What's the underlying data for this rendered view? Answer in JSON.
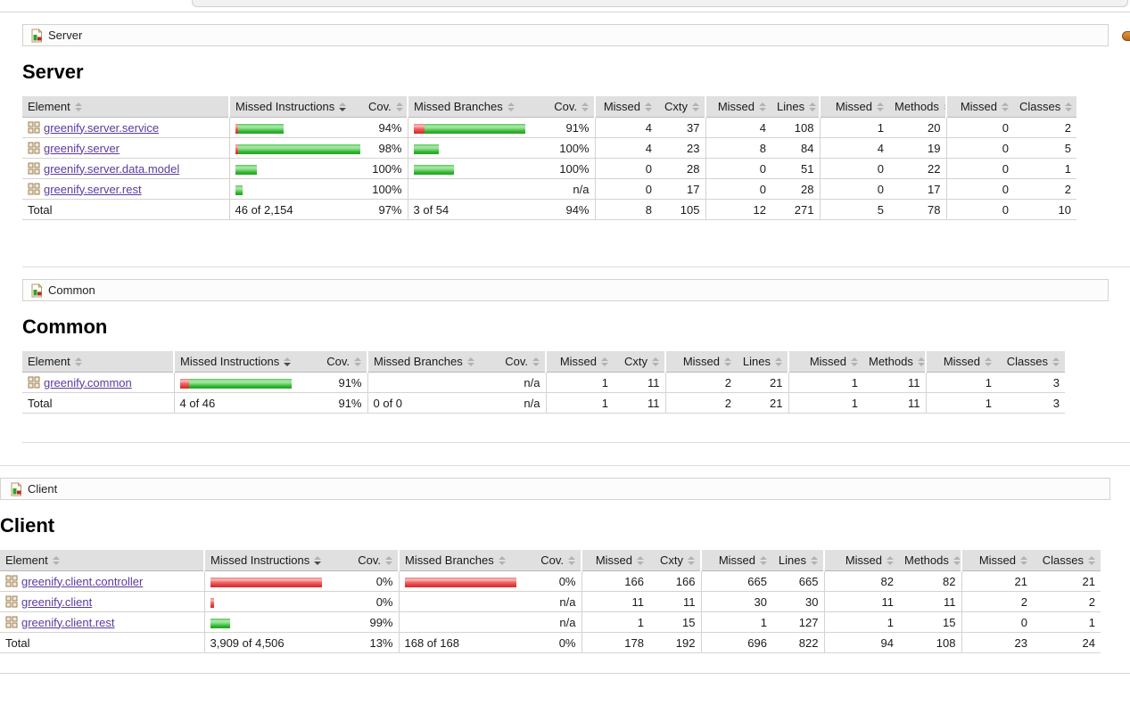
{
  "colors": {
    "link": "#5a3a9e",
    "bar_green": "#2db22d",
    "bar_red": "#e23b3b",
    "header_bg": "#e0e0e0"
  },
  "sections": [
    {
      "breadcrumb": "Server",
      "heading": "Server",
      "sorted_column": "Missed Instructions",
      "columns": [
        "Element",
        "Missed Instructions",
        "Cov.",
        "Missed Branches",
        "Cov.",
        "Missed",
        "Cxty",
        "Missed",
        "Lines",
        "Missed",
        "Methods",
        "Missed",
        "Classes"
      ],
      "rows": [
        {
          "label": "greenify.server.service",
          "instr_bar": {
            "red": 3,
            "green": 51
          },
          "instr_cov": "94%",
          "branch_bar": {
            "red": 12,
            "green": 113
          },
          "branch_cov": "91%",
          "cells": [
            "4",
            "37",
            "4",
            "108",
            "1",
            "20",
            "0",
            "2"
          ]
        },
        {
          "label": "greenify.server",
          "instr_bar": {
            "red": 3,
            "green": 137
          },
          "instr_cov": "98%",
          "branch_bar": {
            "red": 0,
            "green": 28
          },
          "branch_cov": "100%",
          "cells": [
            "4",
            "23",
            "8",
            "84",
            "4",
            "19",
            "0",
            "5"
          ]
        },
        {
          "label": "greenify.server.data.model",
          "instr_bar": {
            "red": 0,
            "green": 24
          },
          "instr_cov": "100%",
          "branch_bar": {
            "red": 0,
            "green": 45
          },
          "branch_cov": "100%",
          "cells": [
            "0",
            "28",
            "0",
            "51",
            "0",
            "22",
            "0",
            "1"
          ]
        },
        {
          "label": "greenify.server.rest",
          "instr_bar": {
            "red": 0,
            "green": 8
          },
          "instr_cov": "100%",
          "branch_bar": {
            "red": 0,
            "green": 0
          },
          "branch_cov": "n/a",
          "cells": [
            "0",
            "17",
            "0",
            "28",
            "0",
            "17",
            "0",
            "2"
          ]
        }
      ],
      "total": {
        "label": "Total",
        "instr_text": "46 of 2,154",
        "instr_cov": "97%",
        "branch_text": "3 of 54",
        "branch_cov": "94%",
        "cells": [
          "8",
          "105",
          "12",
          "271",
          "5",
          "78",
          "0",
          "10"
        ]
      }
    },
    {
      "breadcrumb": "Common",
      "heading": "Common",
      "sorted_column": "Missed Instructions",
      "columns": [
        "Element",
        "Missed Instructions",
        "Cov.",
        "Missed Branches",
        "Cov.",
        "Missed",
        "Cxty",
        "Missed",
        "Lines",
        "Missed",
        "Methods",
        "Missed",
        "Classes"
      ],
      "rows": [
        {
          "label": "greenify.common",
          "instr_bar": {
            "red": 10,
            "green": 115
          },
          "instr_cov": "91%",
          "branch_bar": {
            "red": 0,
            "green": 0
          },
          "branch_cov": "n/a",
          "cells": [
            "1",
            "11",
            "2",
            "21",
            "1",
            "11",
            "1",
            "3"
          ]
        }
      ],
      "total": {
        "label": "Total",
        "instr_text": "4 of 46",
        "instr_cov": "91%",
        "branch_text": "0 of 0",
        "branch_cov": "n/a",
        "cells": [
          "1",
          "11",
          "2",
          "21",
          "1",
          "11",
          "1",
          "3"
        ]
      }
    },
    {
      "breadcrumb": "Client",
      "heading": "Client",
      "sorted_column": "Missed Instructions",
      "columns": [
        "Element",
        "Missed Instructions",
        "Cov.",
        "Missed Branches",
        "Cov.",
        "Missed",
        "Cxty",
        "Missed",
        "Lines",
        "Missed",
        "Methods",
        "Missed",
        "Classes"
      ],
      "rows": [
        {
          "label": "greenify.client.controller",
          "instr_bar": {
            "red": 125,
            "green": 0
          },
          "instr_cov": "0%",
          "branch_bar": {
            "red": 125,
            "green": 0
          },
          "branch_cov": "0%",
          "cells": [
            "166",
            "166",
            "665",
            "665",
            "82",
            "82",
            "21",
            "21"
          ]
        },
        {
          "label": "greenify.client",
          "instr_bar": {
            "red": 4,
            "green": 0
          },
          "instr_cov": "0%",
          "branch_bar": {
            "red": 0,
            "green": 0
          },
          "branch_cov": "n/a",
          "cells": [
            "11",
            "11",
            "30",
            "30",
            "11",
            "11",
            "2",
            "2"
          ]
        },
        {
          "label": "greenify.client.rest",
          "instr_bar": {
            "red": 0,
            "green": 22
          },
          "instr_cov": "99%",
          "branch_bar": {
            "red": 0,
            "green": 0
          },
          "branch_cov": "n/a",
          "cells": [
            "1",
            "15",
            "1",
            "127",
            "1",
            "15",
            "0",
            "1"
          ]
        }
      ],
      "total": {
        "label": "Total",
        "instr_text": "3,909 of 4,506",
        "instr_cov": "13%",
        "branch_text": "168 of 168",
        "branch_cov": "0%",
        "cells": [
          "178",
          "192",
          "696",
          "822",
          "94",
          "108",
          "23",
          "24"
        ]
      }
    }
  ]
}
